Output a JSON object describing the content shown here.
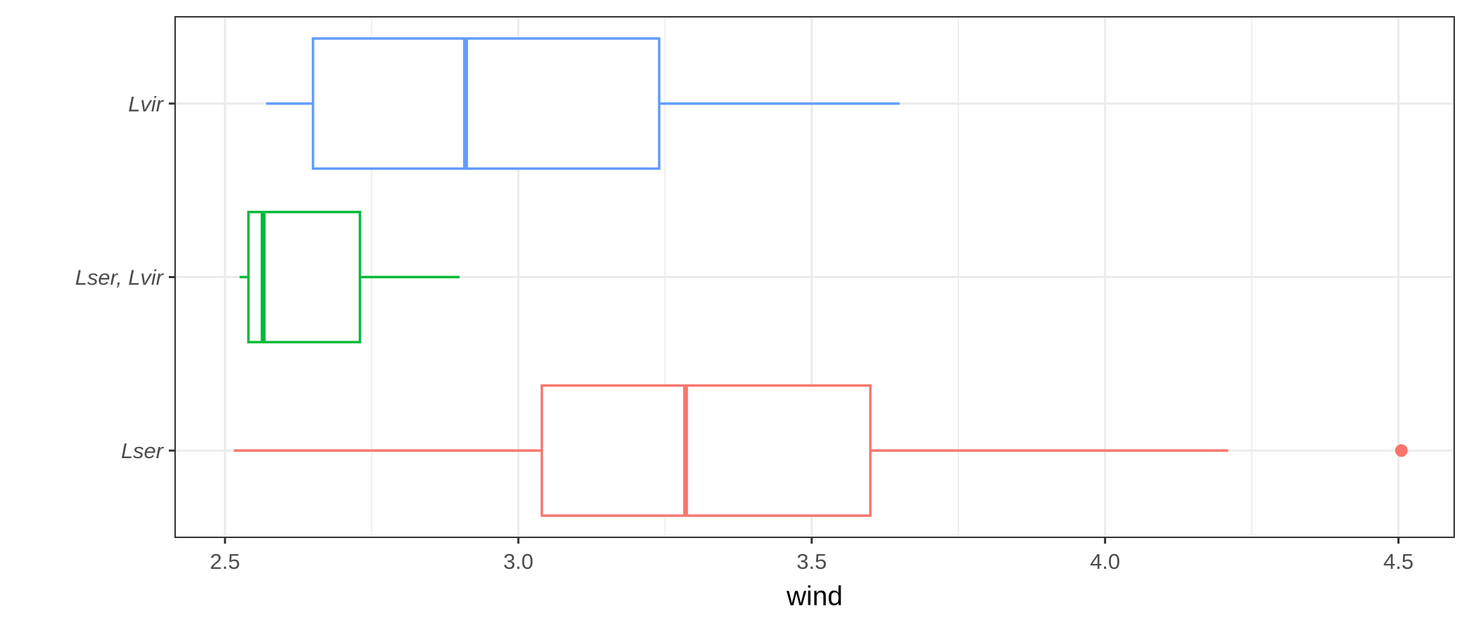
{
  "chart_data": {
    "type": "boxplot",
    "orientation": "horizontal",
    "title": "",
    "xlabel": "wind",
    "ylabel": "",
    "xlim": [
      2.415,
      4.595
    ],
    "x_ticks": [
      2.5,
      3.0,
      3.5,
      4.0,
      4.5
    ],
    "x_tick_labels": [
      "2.5",
      "3.0",
      "3.5",
      "4.0",
      "4.5"
    ],
    "categories": [
      "Lser",
      "Lser, Lvir",
      "Lvir"
    ],
    "series": [
      {
        "category": "Lser",
        "color": "#F8766D",
        "whisker_low": 2.515,
        "q1": 3.04,
        "median": 3.285,
        "q3": 3.6,
        "whisker_high": 4.21,
        "outliers": [
          4.505
        ]
      },
      {
        "category": "Lser, Lvir",
        "color": "#00BA38",
        "whisker_low": 2.525,
        "q1": 2.54,
        "median": 2.565,
        "q3": 2.73,
        "whisker_high": 2.9,
        "outliers": []
      },
      {
        "category": "Lvir",
        "color": "#619CFF",
        "whisker_low": 2.57,
        "q1": 2.65,
        "median": 2.91,
        "q3": 3.24,
        "whisker_high": 3.65,
        "outliers": []
      }
    ],
    "grid": true,
    "theme": "bw",
    "legend": "none"
  }
}
